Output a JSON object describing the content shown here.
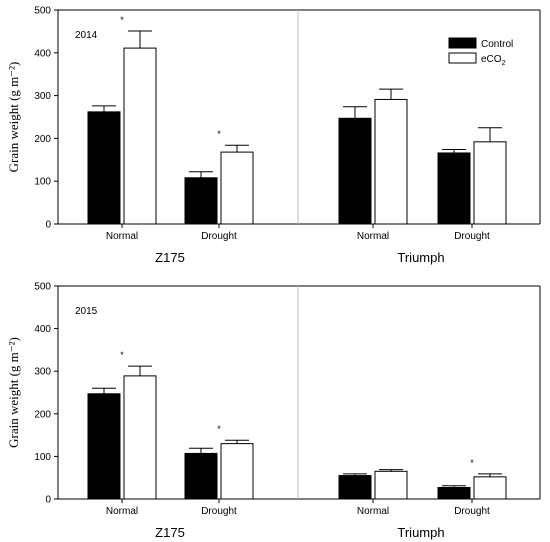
{
  "chart_data": [
    {
      "type": "bar",
      "year_label": "2014",
      "ylabel": "Grain weight (g m⁻²)",
      "ylim": [
        0,
        500
      ],
      "yticks": [
        0,
        100,
        200,
        300,
        400,
        500
      ],
      "groups": [
        {
          "name": "Z175",
          "categories": [
            "Normal",
            "Drought"
          ]
        },
        {
          "name": "Triumph",
          "categories": [
            "Normal",
            "Drought"
          ]
        }
      ],
      "series": [
        {
          "name": "Control",
          "color": "#000000",
          "values": [
            262,
            108,
            247,
            166
          ],
          "errors": [
            14,
            14,
            27,
            8
          ]
        },
        {
          "name": "eCO2",
          "color": "#ffffff",
          "values": [
            411,
            168,
            291,
            192
          ],
          "errors": [
            40,
            16,
            24,
            33
          ]
        }
      ],
      "significance": [
        {
          "cat_index": 0,
          "label": "*"
        },
        {
          "cat_index": 1,
          "label": "*"
        }
      ],
      "legend": "top-right"
    },
    {
      "type": "bar",
      "year_label": "2015",
      "ylabel": "Grain weight (g m⁻²)",
      "ylim": [
        0,
        500
      ],
      "yticks": [
        0,
        100,
        200,
        300,
        400,
        500
      ],
      "groups": [
        {
          "name": "Z175",
          "categories": [
            "Normal",
            "Drought"
          ]
        },
        {
          "name": "Triumph",
          "categories": [
            "Normal",
            "Drought"
          ]
        }
      ],
      "series": [
        {
          "name": "Control",
          "color": "#000000",
          "values": [
            247,
            107,
            55,
            27
          ],
          "errors": [
            13,
            12,
            4,
            4
          ]
        },
        {
          "name": "eCO2",
          "color": "#ffffff",
          "values": [
            289,
            130,
            65,
            52
          ],
          "errors": [
            23,
            8,
            4,
            7
          ]
        }
      ],
      "significance": [
        {
          "cat_index": 0,
          "label": "*"
        },
        {
          "cat_index": 1,
          "label": "*"
        },
        {
          "cat_index": 3,
          "label": "*"
        }
      ]
    }
  ],
  "legend": {
    "control_label": "Control",
    "eco2_label": "eCO",
    "eco2_sub": "2"
  }
}
